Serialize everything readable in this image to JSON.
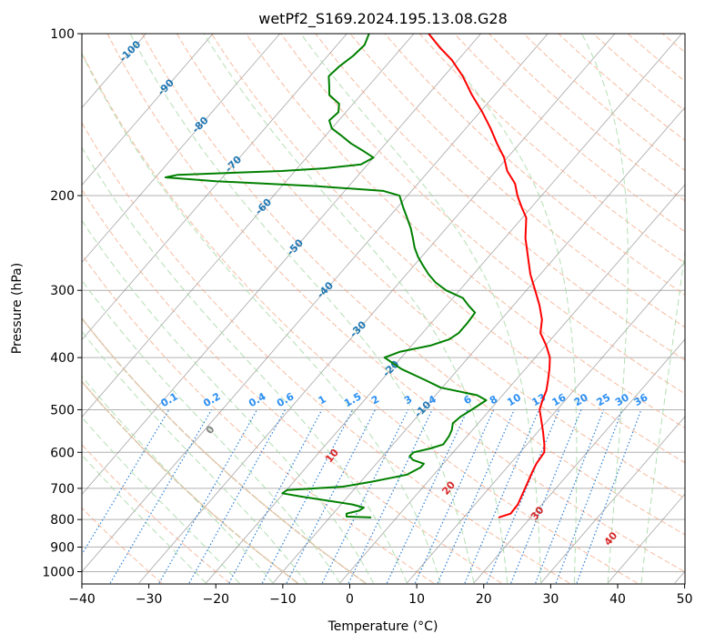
{
  "chart_data": {
    "type": "line",
    "subtype": "skew-t log-p diagram",
    "title": "wetPf2_S169.2024.195.13.08.G28",
    "xlabel": "Temperature (°C)",
    "ylabel": "Pressure (hPa)",
    "xlim": [
      -40,
      50
    ],
    "ylim": [
      1050,
      100
    ],
    "y_scale": "log",
    "grid": true,
    "x_ticks": [
      -40,
      -30,
      -20,
      -10,
      0,
      10,
      20,
      30,
      40,
      50
    ],
    "y_ticks": [
      100,
      200,
      300,
      400,
      500,
      600,
      700,
      800,
      900,
      1000
    ],
    "colors": {
      "temperature": "#ff0000",
      "dewpoint": "#008000",
      "dry_adiabat": "#f4a582",
      "moist_adiabat": "#a6d9a6",
      "mixing_ratio": "#1f77b4",
      "isotherm": "#808080",
      "isotherm_label": "#1f77b4",
      "ref_adiabat": "#d8c7a8"
    },
    "series": [
      {
        "key": "temperature",
        "points": [
          {
            "t": 15.2,
            "p": 793
          },
          {
            "t": 16.5,
            "p": 780
          },
          {
            "t": 16.4,
            "p": 750
          },
          {
            "t": 15.4,
            "p": 700
          },
          {
            "t": 14.3,
            "p": 650
          },
          {
            "t": 13.9,
            "p": 630
          },
          {
            "t": 13.6,
            "p": 600
          },
          {
            "t": 12.6,
            "p": 580
          },
          {
            "t": 10.8,
            "p": 550
          },
          {
            "t": 8.8,
            "p": 520
          },
          {
            "t": 7.4,
            "p": 500
          },
          {
            "t": 6.6,
            "p": 480
          },
          {
            "t": 5.9,
            "p": 460
          },
          {
            "t": 4.8,
            "p": 440
          },
          {
            "t": 3.6,
            "p": 420
          },
          {
            "t": 2.2,
            "p": 400
          },
          {
            "t": 0.1,
            "p": 380
          },
          {
            "t": -2.4,
            "p": 360
          },
          {
            "t": -3.9,
            "p": 340
          },
          {
            "t": -6.1,
            "p": 320
          },
          {
            "t": -8.7,
            "p": 300
          },
          {
            "t": -11.5,
            "p": 280
          },
          {
            "t": -14.1,
            "p": 260
          },
          {
            "t": -16.9,
            "p": 240
          },
          {
            "t": -19.4,
            "p": 220
          },
          {
            "t": -21.5,
            "p": 210
          },
          {
            "t": -23.6,
            "p": 200
          },
          {
            "t": -25.5,
            "p": 190
          },
          {
            "t": -28.3,
            "p": 180
          },
          {
            "t": -30.5,
            "p": 170
          },
          {
            "t": -33.4,
            "p": 160
          },
          {
            "t": -36.3,
            "p": 150
          },
          {
            "t": -39.6,
            "p": 140
          },
          {
            "t": -43.4,
            "p": 130
          },
          {
            "t": -47.2,
            "p": 120
          },
          {
            "t": -50.9,
            "p": 112
          },
          {
            "t": -54.4,
            "p": 106
          },
          {
            "t": -57.8,
            "p": 100
          }
        ]
      },
      {
        "key": "dewpoint",
        "points": [
          {
            "t": -3.8,
            "p": 793
          },
          {
            "t": -7.6,
            "p": 790
          },
          {
            "t": -8.0,
            "p": 780
          },
          {
            "t": -6.5,
            "p": 770
          },
          {
            "t": -6.2,
            "p": 760
          },
          {
            "t": -8.3,
            "p": 750
          },
          {
            "t": -17.0,
            "p": 725
          },
          {
            "t": -20.2,
            "p": 715
          },
          {
            "t": -19.9,
            "p": 705
          },
          {
            "t": -12.0,
            "p": 695
          },
          {
            "t": -8.2,
            "p": 680
          },
          {
            "t": -4.0,
            "p": 660
          },
          {
            "t": -2.9,
            "p": 640
          },
          {
            "t": -2.9,
            "p": 630
          },
          {
            "t": -5.0,
            "p": 620
          },
          {
            "t": -6.0,
            "p": 610
          },
          {
            "t": -5.9,
            "p": 600
          },
          {
            "t": -3.9,
            "p": 590
          },
          {
            "t": -2.5,
            "p": 580
          },
          {
            "t": -2.7,
            "p": 560
          },
          {
            "t": -3.1,
            "p": 545
          },
          {
            "t": -3.8,
            "p": 530
          },
          {
            "t": -3.5,
            "p": 515
          },
          {
            "t": -3.0,
            "p": 505
          },
          {
            "t": -2.5,
            "p": 495
          },
          {
            "t": -1.8,
            "p": 480
          },
          {
            "t": -3.8,
            "p": 470
          },
          {
            "t": -10.2,
            "p": 455
          },
          {
            "t": -13.6,
            "p": 440
          },
          {
            "t": -18.5,
            "p": 420
          },
          {
            "t": -22.5,
            "p": 400
          },
          {
            "t": -20.9,
            "p": 390
          },
          {
            "t": -17.2,
            "p": 380
          },
          {
            "t": -15.2,
            "p": 370
          },
          {
            "t": -14.6,
            "p": 360
          },
          {
            "t": -14.6,
            "p": 345
          },
          {
            "t": -14.8,
            "p": 330
          },
          {
            "t": -16.7,
            "p": 320
          },
          {
            "t": -18.5,
            "p": 310
          },
          {
            "t": -22.0,
            "p": 300
          },
          {
            "t": -24.6,
            "p": 290
          },
          {
            "t": -26.7,
            "p": 280
          },
          {
            "t": -28.6,
            "p": 270
          },
          {
            "t": -30.5,
            "p": 260
          },
          {
            "t": -32.2,
            "p": 250
          },
          {
            "t": -33.7,
            "p": 240
          },
          {
            "t": -35.3,
            "p": 230
          },
          {
            "t": -37.2,
            "p": 220
          },
          {
            "t": -39.2,
            "p": 210
          },
          {
            "t": -41.2,
            "p": 200
          },
          {
            "t": -44.2,
            "p": 196
          },
          {
            "t": -55.0,
            "p": 192
          },
          {
            "t": -70.5,
            "p": 188
          },
          {
            "t": -78.5,
            "p": 185
          },
          {
            "t": -77.0,
            "p": 183
          },
          {
            "t": -62.0,
            "p": 180
          },
          {
            "t": -56.0,
            "p": 178
          },
          {
            "t": -51.0,
            "p": 175
          },
          {
            "t": -50.0,
            "p": 170
          },
          {
            "t": -52.5,
            "p": 165
          },
          {
            "t": -55.2,
            "p": 160
          },
          {
            "t": -57.5,
            "p": 155
          },
          {
            "t": -60.0,
            "p": 150
          },
          {
            "t": -61.4,
            "p": 145
          },
          {
            "t": -61.1,
            "p": 140
          },
          {
            "t": -62.1,
            "p": 135
          },
          {
            "t": -64.7,
            "p": 130
          },
          {
            "t": -65.9,
            "p": 125
          },
          {
            "t": -67.2,
            "p": 120
          },
          {
            "t": -66.9,
            "p": 115
          },
          {
            "t": -66.2,
            "p": 110
          },
          {
            "t": -65.9,
            "p": 105
          },
          {
            "t": -66.7,
            "p": 100
          }
        ]
      }
    ],
    "isotherm_labels": [
      "-100",
      "-90",
      "-80",
      "-70",
      "-60",
      "-50",
      "-40",
      "-30",
      "-20",
      "-10"
    ],
    "mixing_ratio_labels": [
      "0.1",
      "0.2",
      "0.4",
      "0.6",
      "1",
      "1.5",
      "2",
      "3",
      "4",
      "6",
      "8",
      "10",
      "13",
      "16",
      "20",
      "25",
      "30",
      "36"
    ],
    "moist_adiabat_labels": [
      "0",
      "10",
      "20",
      "30",
      "40"
    ]
  }
}
